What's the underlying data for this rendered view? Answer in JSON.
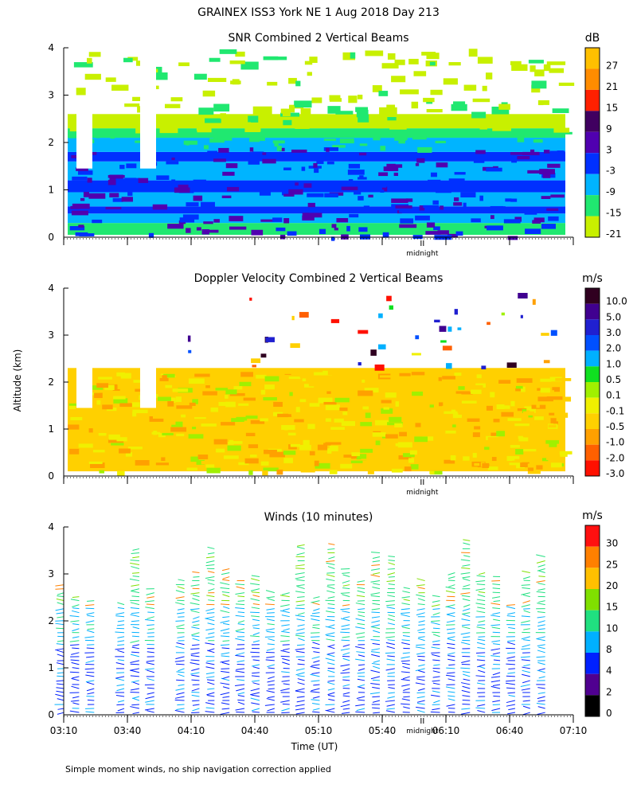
{
  "header": {
    "title": "GRAINEX ISS3 York NE   1 Aug 2018 Day 213",
    "footnote": "Simple moment winds, no ship navigation correction applied",
    "y_axis_label": "Altitude (km)",
    "x_axis_label": "Time (UT)",
    "midnight_label": "midnight"
  },
  "chart_data": [
    {
      "type": "heatmap",
      "title": "SNR Combined 2 Vertical Beams",
      "units": "dB",
      "ylim": [
        0,
        4
      ],
      "yticks": [
        "0",
        "1",
        "2",
        "3",
        "4"
      ],
      "colorbar_labels": [
        "27",
        "21",
        "15",
        "9",
        "3",
        "-3",
        "-9",
        "-15",
        "-21"
      ],
      "colors": [
        "#ffc000",
        "#ff8c00",
        "#ff2000",
        "#400060",
        "#5000b0",
        "#0030ff",
        "#00b4ff",
        "#20e870",
        "#c8f000"
      ]
    },
    {
      "type": "heatmap",
      "title": "Doppler Velocity Combined 2 Vertical Beams",
      "units": "m/s",
      "ylim": [
        0,
        4
      ],
      "yticks": [
        "0",
        "1",
        "2",
        "3",
        "4"
      ],
      "colorbar_labels": [
        "10.0",
        "5.0",
        "3.0",
        "2.0",
        "1.0",
        "0.5",
        "0.1",
        "-0.1",
        "-0.5",
        "-1.0",
        "-2.0",
        "-3.0"
      ],
      "colors": [
        "#300020",
        "#400090",
        "#2020d0",
        "#0050ff",
        "#00b0ff",
        "#10e020",
        "#a0f000",
        "#f0f000",
        "#ffd000",
        "#ffa000",
        "#ff6000",
        "#ff1000"
      ]
    },
    {
      "type": "scatter",
      "title": "Winds (10 minutes)",
      "units": "m/s",
      "ylim": [
        0,
        4
      ],
      "yticks": [
        "0",
        "1",
        "2",
        "3",
        "4"
      ],
      "x": [
        "03:10",
        "03:40",
        "04:10",
        "04:40",
        "05:10",
        "05:40",
        "06:10",
        "06:40",
        "07:10"
      ],
      "xlim_hours": [
        3.1667,
        7.1667
      ],
      "midnight_hour": 6.0,
      "colorbar_labels": [
        "30",
        "25",
        "20",
        "15",
        "10",
        "8",
        "4",
        "2",
        "0"
      ],
      "colors": [
        "#ff1010",
        "#ff8000",
        "#ffc000",
        "#80e000",
        "#20e080",
        "#00b0ff",
        "#0020ff",
        "#500090",
        "#000000"
      ]
    }
  ]
}
